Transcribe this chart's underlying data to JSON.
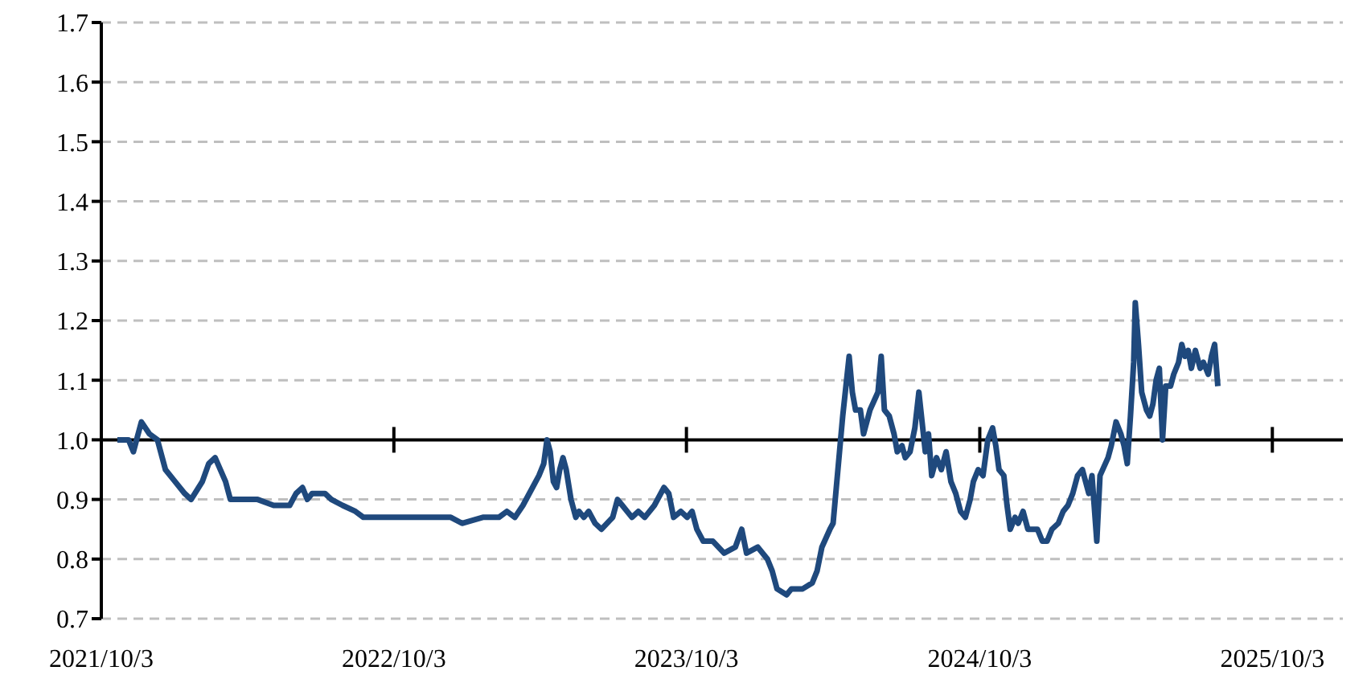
{
  "chart_data": {
    "type": "line",
    "xlim": [
      "2021-10-03",
      "2025-12-30"
    ],
    "xticks": [
      {
        "value": "2021-10-03",
        "label": "2021/10/3"
      },
      {
        "value": "2022-10-03",
        "label": "2022/10/3"
      },
      {
        "value": "2023-10-03",
        "label": "2023/10/3"
      },
      {
        "value": "2024-10-03",
        "label": "2024/10/3"
      },
      {
        "value": "2025-10-03",
        "label": "2025/10/3"
      }
    ],
    "ylim": [
      0.7,
      1.7
    ],
    "yticks": [
      0.7,
      0.8,
      0.9,
      {
        "value": 1,
        "label": "1.0"
      },
      1.1,
      1.2,
      1.3,
      1.4,
      1.5,
      1.6,
      1.7
    ],
    "grid": "y",
    "legend": false,
    "marker": "none",
    "line_style": "solid",
    "ref_lines": [
      {
        "axis": "y",
        "value": 1,
        "color": "#000000"
      }
    ],
    "x": [
      "2021-10-23",
      "2021-11-06",
      "2021-11-12",
      "2021-11-22",
      "2021-12-02",
      "2021-12-12",
      "2021-12-22",
      "2022-01-03",
      "2022-01-15",
      "2022-01-23",
      "2022-02-06",
      "2022-02-14",
      "2022-02-22",
      "2022-03-07",
      "2022-03-13",
      "2022-03-27",
      "2022-04-16",
      "2022-05-06",
      "2022-05-26",
      "2022-06-03",
      "2022-06-11",
      "2022-06-17",
      "2022-06-23",
      "2022-07-01",
      "2022-07-09",
      "2022-07-17",
      "2022-07-31",
      "2022-08-16",
      "2022-08-26",
      "2022-09-23",
      "2022-11-02",
      "2022-12-13",
      "2022-12-27",
      "2023-01-22",
      "2023-02-11",
      "2023-02-21",
      "2023-03-03",
      "2023-03-13",
      "2023-03-25",
      "2023-04-02",
      "2023-04-08",
      "2023-04-12",
      "2023-04-16",
      "2023-04-20",
      "2023-04-24",
      "2023-04-28",
      "2023-05-02",
      "2023-05-06",
      "2023-05-12",
      "2023-05-18",
      "2023-05-22",
      "2023-05-28",
      "2023-06-03",
      "2023-06-11",
      "2023-06-19",
      "2023-07-03",
      "2023-07-09",
      "2023-07-15",
      "2023-07-27",
      "2023-08-04",
      "2023-08-12",
      "2023-08-24",
      "2023-09-05",
      "2023-09-11",
      "2023-09-17",
      "2023-09-26",
      "2023-10-04",
      "2023-10-10",
      "2023-10-16",
      "2023-10-24",
      "2023-11-05",
      "2023-11-19",
      "2023-12-03",
      "2023-12-11",
      "2023-12-17",
      "2023-12-31",
      "2024-01-12",
      "2024-01-18",
      "2024-01-24",
      "2024-02-05",
      "2024-02-11",
      "2024-02-25",
      "2024-03-08",
      "2024-03-14",
      "2024-03-20",
      "2024-03-30",
      "2024-04-03",
      "2024-04-07",
      "2024-04-11",
      "2024-04-15",
      "2024-04-19",
      "2024-04-23",
      "2024-04-27",
      "2024-05-01",
      "2024-05-07",
      "2024-05-11",
      "2024-05-19",
      "2024-05-29",
      "2024-06-02",
      "2024-06-06",
      "2024-06-12",
      "2024-06-18",
      "2024-06-22",
      "2024-06-28",
      "2024-07-02",
      "2024-07-08",
      "2024-07-14",
      "2024-07-19",
      "2024-07-23",
      "2024-07-27",
      "2024-07-31",
      "2024-08-04",
      "2024-08-10",
      "2024-08-16",
      "2024-08-22",
      "2024-08-28",
      "2024-09-03",
      "2024-09-09",
      "2024-09-15",
      "2024-09-21",
      "2024-09-25",
      "2024-10-01",
      "2024-10-07",
      "2024-10-13",
      "2024-10-19",
      "2024-10-23",
      "2024-10-27",
      "2024-11-02",
      "2024-11-06",
      "2024-11-10",
      "2024-11-16",
      "2024-11-20",
      "2024-11-26",
      "2024-12-02",
      "2024-12-14",
      "2024-12-20",
      "2024-12-26",
      "2025-01-01",
      "2025-01-09",
      "2025-01-15",
      "2025-01-21",
      "2025-01-27",
      "2025-02-02",
      "2025-02-08",
      "2025-02-12",
      "2025-02-16",
      "2025-02-20",
      "2025-02-26",
      "2025-03-02",
      "2025-03-12",
      "2025-03-16",
      "2025-03-22",
      "2025-03-28",
      "2025-04-01",
      "2025-04-05",
      "2025-04-09",
      "2025-04-13",
      "2025-04-15",
      "2025-04-19",
      "2025-04-23",
      "2025-04-29",
      "2025-05-03",
      "2025-05-07",
      "2025-05-11",
      "2025-05-15",
      "2025-05-19",
      "2025-05-23",
      "2025-05-29",
      "2025-06-02",
      "2025-06-08",
      "2025-06-12",
      "2025-06-16",
      "2025-06-20",
      "2025-06-24",
      "2025-06-29",
      "2025-07-05",
      "2025-07-09",
      "2025-07-15",
      "2025-07-19",
      "2025-07-23",
      "2025-07-27"
    ],
    "series": [
      {
        "color": "#1f497d",
        "values": [
          1.0,
          1.0,
          0.98,
          1.03,
          1.01,
          1.0,
          0.95,
          0.93,
          0.91,
          0.9,
          0.93,
          0.96,
          0.97,
          0.93,
          0.9,
          0.9,
          0.9,
          0.89,
          0.89,
          0.91,
          0.92,
          0.9,
          0.91,
          0.91,
          0.91,
          0.9,
          0.89,
          0.88,
          0.87,
          0.87,
          0.87,
          0.87,
          0.86,
          0.87,
          0.87,
          0.88,
          0.87,
          0.89,
          0.92,
          0.94,
          0.96,
          1.0,
          0.98,
          0.93,
          0.92,
          0.95,
          0.97,
          0.95,
          0.9,
          0.87,
          0.88,
          0.87,
          0.88,
          0.86,
          0.85,
          0.87,
          0.9,
          0.89,
          0.87,
          0.88,
          0.87,
          0.89,
          0.92,
          0.91,
          0.87,
          0.88,
          0.87,
          0.88,
          0.85,
          0.83,
          0.83,
          0.81,
          0.82,
          0.85,
          0.81,
          0.82,
          0.8,
          0.78,
          0.75,
          0.74,
          0.75,
          0.75,
          0.76,
          0.78,
          0.82,
          0.85,
          0.86,
          0.92,
          0.98,
          1.04,
          1.09,
          1.14,
          1.08,
          1.05,
          1.05,
          1.01,
          1.05,
          1.08,
          1.14,
          1.05,
          1.04,
          1.01,
          0.98,
          0.99,
          0.97,
          0.98,
          1.02,
          1.08,
          1.03,
          0.98,
          1.01,
          0.94,
          0.97,
          0.95,
          0.98,
          0.93,
          0.91,
          0.88,
          0.87,
          0.9,
          0.93,
          0.95,
          0.94,
          1.0,
          1.02,
          0.99,
          0.95,
          0.94,
          0.89,
          0.85,
          0.87,
          0.86,
          0.88,
          0.85,
          0.85,
          0.83,
          0.83,
          0.85,
          0.86,
          0.88,
          0.89,
          0.91,
          0.94,
          0.95,
          0.93,
          0.91,
          0.94,
          0.83,
          0.94,
          0.97,
          0.99,
          1.03,
          1.01,
          0.99,
          0.96,
          1.04,
          1.13,
          1.23,
          1.16,
          1.08,
          1.05,
          1.04,
          1.06,
          1.1,
          1.12,
          1.0,
          1.09,
          1.09,
          1.11,
          1.13,
          1.16,
          1.14,
          1.15,
          1.12,
          1.15,
          1.12,
          1.13,
          1.11,
          1.14,
          1.16,
          1.09
        ]
      }
    ]
  }
}
